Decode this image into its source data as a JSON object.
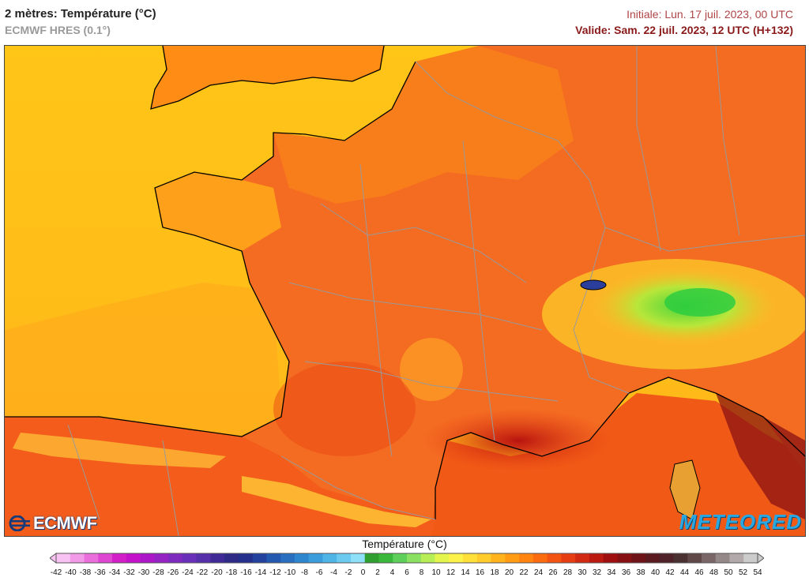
{
  "header": {
    "title": "2 mètres: Température (°C)",
    "model": "ECMWF HRES (0.1°)",
    "initial": "Initiale: Lun. 17 juil. 2023, 00 UTC",
    "valid": "Valide: Sam. 22 juil. 2023, 12 UTC (H+132)"
  },
  "logos": {
    "left": "ECMWF",
    "right": "METEORED"
  },
  "legend": {
    "title": "Température (°C)",
    "ticks": [
      "-42",
      "-40",
      "-38",
      "-36",
      "-34",
      "-32",
      "-30",
      "-28",
      "-26",
      "-24",
      "-22",
      "-20",
      "-18",
      "-16",
      "-14",
      "-12",
      "-10",
      "-8",
      "-6",
      "-4",
      "-2",
      "0",
      "2",
      "4",
      "6",
      "8",
      "10",
      "12",
      "14",
      "16",
      "18",
      "20",
      "22",
      "24",
      "26",
      "28",
      "30",
      "32",
      "34",
      "36",
      "38",
      "40",
      "42",
      "44",
      "46",
      "48",
      "50",
      "52",
      "54"
    ],
    "colors": [
      "#f8c2f3",
      "#f29ae8",
      "#ea6fdd",
      "#df46d2",
      "#d21fc8",
      "#c312c9",
      "#ac18c7",
      "#9523c4",
      "#7f2abf",
      "#6a2fb8",
      "#5530a8",
      "#402b96",
      "#2f2a86",
      "#252f8c",
      "#22429e",
      "#2459b0",
      "#286fc0",
      "#2e86cf",
      "#3b9ddc",
      "#4fb4e6",
      "#6ccaf0",
      "#8edff8",
      "#2fa02f",
      "#3ab83a",
      "#5ed05a",
      "#8ae060",
      "#b8ee55",
      "#e4f64e",
      "#fdf24a",
      "#ffe03a",
      "#ffcc2c",
      "#ffb41e",
      "#ff9c14",
      "#ff8410",
      "#fb6c10",
      "#f45412",
      "#e63e12",
      "#d22a10",
      "#bb1a10",
      "#a00f0f",
      "#861012",
      "#6e1418",
      "#5a1a20",
      "#4e2228",
      "#4a3030",
      "#604848",
      "#7a6666",
      "#958888",
      "#b2aaaa",
      "#cccccc"
    ]
  },
  "map": {
    "sea_color": "#ffc517",
    "land_color": "#f46b22"
  }
}
